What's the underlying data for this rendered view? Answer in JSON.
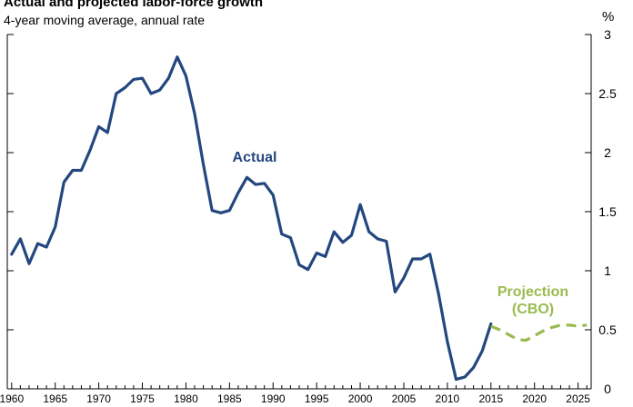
{
  "chart_data": {
    "type": "line",
    "title": "Actual and projected labor-force growth",
    "subtitle": "4-year moving average, annual rate",
    "ylabel": "%",
    "xlim": [
      1959.5,
      2026.5
    ],
    "ylim": [
      0,
      3
    ],
    "x_ticks": [
      "1960",
      "1965",
      "1970",
      "1975",
      "1980",
      "1985",
      "1990",
      "1995",
      "2000",
      "2005",
      "2010",
      "2015",
      "2020",
      "2025"
    ],
    "y_ticks": [
      "0",
      "0.5",
      "1",
      "1.5",
      "2",
      "2.5",
      "3"
    ],
    "grid": false,
    "series": [
      {
        "name": "Actual",
        "color": "#24477f",
        "style": "solid",
        "x": [
          1960,
          1961,
          1962,
          1963,
          1964,
          1965,
          1966,
          1967,
          1968,
          1969,
          1970,
          1971,
          1972,
          1973,
          1974,
          1975,
          1976,
          1977,
          1978,
          1979,
          1980,
          1981,
          1982,
          1983,
          1984,
          1985,
          1986,
          1987,
          1988,
          1989,
          1990,
          1991,
          1992,
          1993,
          1994,
          1995,
          1996,
          1997,
          1998,
          1999,
          2000,
          2001,
          2002,
          2003,
          2004,
          2005,
          2006,
          2007,
          2008,
          2009,
          2010,
          2011,
          2012,
          2013,
          2014,
          2015
        ],
        "y": [
          1.14,
          1.27,
          1.06,
          1.23,
          1.2,
          1.37,
          1.75,
          1.85,
          1.85,
          2.02,
          2.22,
          2.17,
          2.5,
          2.55,
          2.62,
          2.63,
          2.5,
          2.53,
          2.63,
          2.81,
          2.65,
          2.33,
          1.9,
          1.51,
          1.49,
          1.51,
          1.66,
          1.79,
          1.73,
          1.74,
          1.64,
          1.31,
          1.28,
          1.05,
          1.01,
          1.15,
          1.12,
          1.33,
          1.24,
          1.3,
          1.56,
          1.33,
          1.27,
          1.25,
          0.82,
          0.94,
          1.1,
          1.1,
          1.14,
          0.8,
          0.4,
          0.08,
          0.1,
          0.18,
          0.32,
          0.55
        ]
      },
      {
        "name": "Projection (CBO)",
        "color": "#99bb4e",
        "style": "dashed",
        "x": [
          2015,
          2016,
          2017,
          2018,
          2019,
          2020,
          2021,
          2022,
          2023,
          2024,
          2025,
          2026
        ],
        "y": [
          0.53,
          0.5,
          0.46,
          0.42,
          0.41,
          0.45,
          0.49,
          0.52,
          0.54,
          0.54,
          0.53,
          0.54
        ]
      }
    ],
    "annotations": [
      {
        "text": "Actual",
        "color": "#24477f"
      },
      {
        "text": "Projection",
        "color": "#99bb4e"
      },
      {
        "text": "(CBO)",
        "color": "#99bb4e"
      }
    ]
  }
}
